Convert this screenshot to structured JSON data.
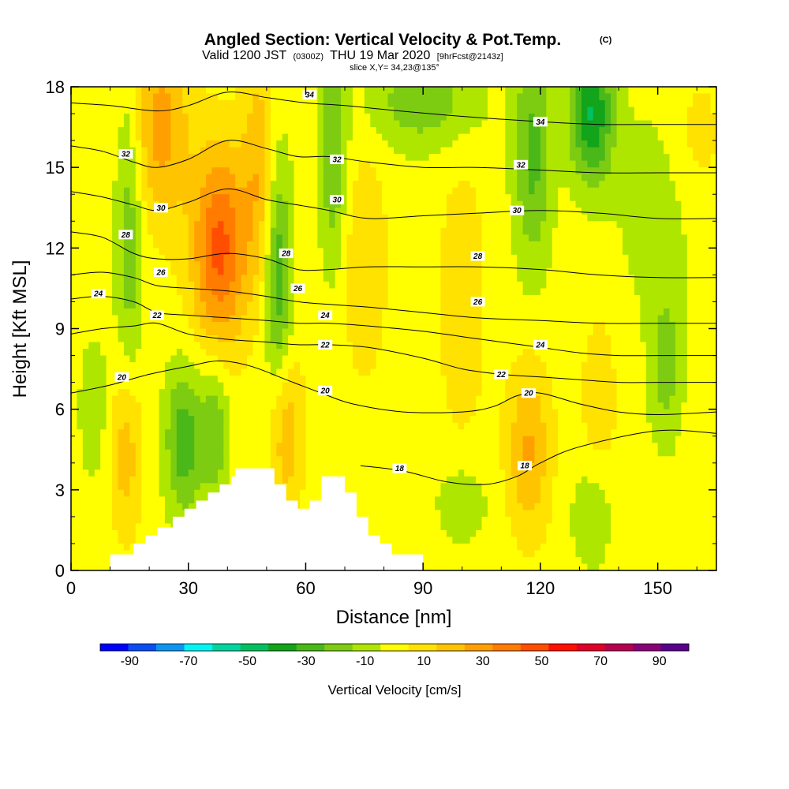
{
  "header": {
    "title": "Angled Section: Vertical Velocity & Pot.Temp.",
    "copyright": "(C)",
    "valid_prefix": "Valid 1200 JST",
    "valid_zulu": "(0300Z)",
    "valid_date": "THU 19 Mar 2020",
    "forecast": "[9hrFcst@2143z]",
    "slice": "slice X,Y= 34,23@135°"
  },
  "chart_data": {
    "type": "heatmap",
    "xlabel": "Distance [nm]",
    "ylabel": "Height [Kft MSL]",
    "xlim": [
      0,
      165
    ],
    "ylim": [
      0,
      18
    ],
    "x_ticks": [
      "0",
      "30",
      "60",
      "90",
      "120",
      "150"
    ],
    "y_ticks": [
      "0",
      "3",
      "6",
      "9",
      "12",
      "15",
      "18"
    ],
    "colorbar": {
      "label": "Vertical Velocity [cm/s]",
      "tick_labels": [
        "-90",
        "-70",
        "-50",
        "-30",
        "-10",
        "10",
        "30",
        "50",
        "70",
        "90"
      ],
      "bins": [
        -100,
        -90,
        -80,
        -70,
        -60,
        -50,
        -40,
        -30,
        -20,
        -10,
        0,
        10,
        20,
        30,
        40,
        50,
        60,
        70,
        80,
        90,
        100
      ],
      "colors": [
        "#0000ff",
        "#0a4ef2",
        "#0a96f0",
        "#00f5f5",
        "#00d5a0",
        "#00c060",
        "#12a41a",
        "#4ab818",
        "#7dcc12",
        "#aee600",
        "#ffff00",
        "#ffe200",
        "#ffc400",
        "#ffa000",
        "#ff7c00",
        "#ff4e00",
        "#ff1000",
        "#e0002a",
        "#b80050",
        "#8a0078",
        "#5a008c"
      ]
    },
    "terrain": [
      [
        10,
        0.6
      ],
      [
        16,
        0.6
      ],
      [
        16,
        1.0
      ],
      [
        19,
        1.0
      ],
      [
        19,
        1.3
      ],
      [
        22,
        1.3
      ],
      [
        22,
        1.6
      ],
      [
        26,
        1.6
      ],
      [
        26,
        2.0
      ],
      [
        29,
        2.0
      ],
      [
        29,
        2.3
      ],
      [
        32,
        2.3
      ],
      [
        32,
        2.6
      ],
      [
        35,
        2.6
      ],
      [
        35,
        2.9
      ],
      [
        38,
        2.9
      ],
      [
        38,
        3.2
      ],
      [
        41,
        3.2
      ],
      [
        41,
        3.5
      ],
      [
        42,
        3.5
      ],
      [
        42,
        3.8
      ],
      [
        52,
        3.8
      ],
      [
        52,
        3.2
      ],
      [
        55,
        3.2
      ],
      [
        55,
        2.6
      ],
      [
        58,
        2.6
      ],
      [
        58,
        2.3
      ],
      [
        61,
        2.3
      ],
      [
        61,
        2.6
      ],
      [
        64,
        2.6
      ],
      [
        64,
        3.5
      ],
      [
        70,
        3.5
      ],
      [
        70,
        2.9
      ],
      [
        73,
        2.9
      ],
      [
        73,
        2.0
      ],
      [
        76,
        2.0
      ],
      [
        76,
        1.3
      ],
      [
        79,
        1.3
      ],
      [
        79,
        1.0
      ],
      [
        82,
        1.0
      ],
      [
        82,
        0.6
      ],
      [
        90,
        0.6
      ],
      [
        90,
        0
      ]
    ],
    "wfield_blobs": [
      {
        "x": 23,
        "y": 16.5,
        "w": 30,
        "sx": 5,
        "sy": 2.5
      },
      {
        "x": 38,
        "y": 12.0,
        "w": 48,
        "sx": 5,
        "sy": 2.6
      },
      {
        "x": 48,
        "y": 15.0,
        "w": 22,
        "sx": 3,
        "sy": 3
      },
      {
        "x": 53,
        "y": 11.0,
        "w": -32,
        "sx": 2.5,
        "sy": 3.2
      },
      {
        "x": 67,
        "y": 15.5,
        "w": -25,
        "sx": 2.5,
        "sy": 3
      },
      {
        "x": 15,
        "y": 12.5,
        "w": -22,
        "sx": 2.5,
        "sy": 4
      },
      {
        "x": 29,
        "y": 4.8,
        "w": -32,
        "sx": 3.5,
        "sy": 2
      },
      {
        "x": 37,
        "y": 5.2,
        "w": -22,
        "sx": 2.5,
        "sy": 2
      },
      {
        "x": 14,
        "y": 4.5,
        "w": 22,
        "sx": 3,
        "sy": 2.2
      },
      {
        "x": 55,
        "y": 5.2,
        "w": 24,
        "sx": 3,
        "sy": 2.2
      },
      {
        "x": 75,
        "y": 11.5,
        "w": 14,
        "sx": 4,
        "sy": 3
      },
      {
        "x": 100,
        "y": 10,
        "w": 14,
        "sx": 4,
        "sy": 3.5
      },
      {
        "x": 117,
        "y": 4.5,
        "w": 26,
        "sx": 4,
        "sy": 2.2
      },
      {
        "x": 135,
        "y": 6.5,
        "w": 14,
        "sx": 3,
        "sy": 2
      },
      {
        "x": 90,
        "y": 17.5,
        "w": -22,
        "sx": 10,
        "sy": 1.3
      },
      {
        "x": 118,
        "y": 15.5,
        "w": -28,
        "sx": 3.5,
        "sy": 3
      },
      {
        "x": 133,
        "y": 17.0,
        "w": -45,
        "sx": 4,
        "sy": 1.8
      },
      {
        "x": 152,
        "y": 7.5,
        "w": -20,
        "sx": 3,
        "sy": 2
      },
      {
        "x": 100,
        "y": 2.5,
        "w": -12,
        "sx": 5,
        "sy": 1.2
      },
      {
        "x": 133,
        "y": 2.0,
        "w": -12,
        "sx": 4,
        "sy": 1.5
      },
      {
        "x": 150,
        "y": 13.5,
        "w": -10,
        "sx": 8,
        "sy": 3
      },
      {
        "x": 160,
        "y": 16.0,
        "w": 10,
        "sx": 5,
        "sy": 2
      },
      {
        "x": 6,
        "y": 6.0,
        "w": -12,
        "sx": 3,
        "sy": 2
      }
    ],
    "theta_contours": [
      {
        "level": "18",
        "points": [
          [
            74,
            3.9
          ],
          [
            85,
            3.7
          ],
          [
            96,
            3.3
          ],
          [
            106,
            3.2
          ],
          [
            114,
            3.5
          ],
          [
            120,
            4.0
          ],
          [
            130,
            4.6
          ],
          [
            150,
            5.2
          ],
          [
            165,
            5.1
          ]
        ]
      },
      {
        "level": "20",
        "points": [
          [
            0,
            6.6
          ],
          [
            10,
            6.9
          ],
          [
            20,
            7.3
          ],
          [
            30,
            7.6
          ],
          [
            38,
            7.8
          ],
          [
            46,
            7.6
          ],
          [
            55,
            7.1
          ],
          [
            64,
            6.6
          ],
          [
            72,
            6.2
          ],
          [
            85,
            5.9
          ],
          [
            100,
            5.9
          ],
          [
            108,
            6.1
          ],
          [
            114,
            6.5
          ],
          [
            120,
            6.6
          ],
          [
            130,
            6.2
          ],
          [
            140,
            5.9
          ],
          [
            150,
            5.8
          ],
          [
            165,
            5.9
          ]
        ]
      },
      {
        "level": "22",
        "points": [
          [
            0,
            8.8
          ],
          [
            8,
            9.0
          ],
          [
            16,
            9.1
          ],
          [
            22,
            9.2
          ],
          [
            30,
            8.8
          ],
          [
            40,
            8.6
          ],
          [
            50,
            8.5
          ],
          [
            58,
            8.4
          ],
          [
            66,
            8.4
          ],
          [
            76,
            8.3
          ],
          [
            90,
            7.9
          ],
          [
            100,
            7.5
          ],
          [
            110,
            7.3
          ],
          [
            120,
            7.2
          ],
          [
            130,
            7.1
          ],
          [
            140,
            7.0
          ],
          [
            150,
            7.0
          ],
          [
            165,
            7.0
          ]
        ]
      },
      {
        "level": "24",
        "points": [
          [
            0,
            10.1
          ],
          [
            8,
            10.2
          ],
          [
            16,
            10.0
          ],
          [
            22,
            9.6
          ],
          [
            30,
            9.5
          ],
          [
            40,
            9.4
          ],
          [
            50,
            9.3
          ],
          [
            58,
            9.2
          ],
          [
            66,
            9.2
          ],
          [
            76,
            9.1
          ],
          [
            90,
            8.9
          ],
          [
            100,
            8.7
          ],
          [
            110,
            8.5
          ],
          [
            120,
            8.3
          ],
          [
            130,
            8.1
          ],
          [
            140,
            8.0
          ],
          [
            150,
            8.0
          ],
          [
            165,
            8.0
          ]
        ]
      },
      {
        "level": "26",
        "points": [
          [
            0,
            11.0
          ],
          [
            8,
            11.1
          ],
          [
            16,
            10.9
          ],
          [
            22,
            10.6
          ],
          [
            30,
            10.5
          ],
          [
            40,
            10.4
          ],
          [
            50,
            10.2
          ],
          [
            58,
            10.0
          ],
          [
            66,
            9.9
          ],
          [
            76,
            9.8
          ],
          [
            90,
            9.6
          ],
          [
            104,
            9.4
          ],
          [
            120,
            9.3
          ],
          [
            135,
            9.2
          ],
          [
            150,
            9.2
          ],
          [
            165,
            9.2
          ]
        ]
      },
      {
        "level": "28",
        "points": [
          [
            0,
            12.6
          ],
          [
            8,
            12.4
          ],
          [
            16,
            11.8
          ],
          [
            22,
            11.6
          ],
          [
            30,
            11.6
          ],
          [
            40,
            11.8
          ],
          [
            50,
            11.6
          ],
          [
            58,
            11.2
          ],
          [
            66,
            11.2
          ],
          [
            76,
            11.3
          ],
          [
            90,
            11.3
          ],
          [
            104,
            11.3
          ],
          [
            120,
            11.2
          ],
          [
            135,
            11.0
          ],
          [
            150,
            10.9
          ],
          [
            165,
            10.9
          ]
        ]
      },
      {
        "level": "30",
        "points": [
          [
            0,
            14.1
          ],
          [
            8,
            13.9
          ],
          [
            16,
            13.6
          ],
          [
            22,
            13.4
          ],
          [
            30,
            13.7
          ],
          [
            40,
            14.2
          ],
          [
            50,
            13.8
          ],
          [
            58,
            13.6
          ],
          [
            66,
            13.4
          ],
          [
            76,
            13.1
          ],
          [
            90,
            13.2
          ],
          [
            104,
            13.3
          ],
          [
            120,
            13.4
          ],
          [
            135,
            13.3
          ],
          [
            150,
            13.1
          ],
          [
            165,
            13.1
          ]
        ]
      },
      {
        "level": "32",
        "points": [
          [
            0,
            15.8
          ],
          [
            8,
            15.6
          ],
          [
            16,
            15.2
          ],
          [
            22,
            15.0
          ],
          [
            30,
            15.3
          ],
          [
            40,
            16.0
          ],
          [
            50,
            15.7
          ],
          [
            58,
            15.4
          ],
          [
            66,
            15.4
          ],
          [
            76,
            15.2
          ],
          [
            90,
            15.0
          ],
          [
            104,
            15.0
          ],
          [
            120,
            14.9
          ],
          [
            135,
            14.8
          ],
          [
            150,
            14.8
          ],
          [
            165,
            14.8
          ]
        ]
      },
      {
        "level": "34",
        "points": [
          [
            0,
            17.4
          ],
          [
            10,
            17.3
          ],
          [
            22,
            17.1
          ],
          [
            30,
            17.3
          ],
          [
            40,
            17.8
          ],
          [
            50,
            17.6
          ],
          [
            60,
            17.4
          ],
          [
            70,
            17.3
          ],
          [
            84,
            17.1
          ],
          [
            100,
            16.9
          ],
          [
            120,
            16.7
          ],
          [
            135,
            16.6
          ],
          [
            150,
            16.6
          ],
          [
            165,
            16.6
          ]
        ]
      }
    ],
    "contour_labels": [
      {
        "text": "34",
        "x": 61,
        "y": 17.7
      },
      {
        "text": "34",
        "x": 120,
        "y": 16.7
      },
      {
        "text": "32",
        "x": 14,
        "y": 15.5
      },
      {
        "text": "32",
        "x": 68,
        "y": 15.3
      },
      {
        "text": "32",
        "x": 115,
        "y": 15.1
      },
      {
        "text": "30",
        "x": 23,
        "y": 13.5
      },
      {
        "text": "30",
        "x": 68,
        "y": 13.8
      },
      {
        "text": "30",
        "x": 114,
        "y": 13.4
      },
      {
        "text": "28",
        "x": 14,
        "y": 12.5
      },
      {
        "text": "28",
        "x": 55,
        "y": 11.8
      },
      {
        "text": "28",
        "x": 104,
        "y": 11.7
      },
      {
        "text": "26",
        "x": 23,
        "y": 11.1
      },
      {
        "text": "26",
        "x": 58,
        "y": 10.5
      },
      {
        "text": "26",
        "x": 104,
        "y": 10.0
      },
      {
        "text": "24",
        "x": 7,
        "y": 10.3
      },
      {
        "text": "24",
        "x": 65,
        "y": 9.5
      },
      {
        "text": "24",
        "x": 120,
        "y": 8.4
      },
      {
        "text": "22",
        "x": 22,
        "y": 9.5
      },
      {
        "text": "22",
        "x": 65,
        "y": 8.4
      },
      {
        "text": "22",
        "x": 110,
        "y": 7.3
      },
      {
        "text": "20",
        "x": 13,
        "y": 7.2
      },
      {
        "text": "20",
        "x": 65,
        "y": 6.7
      },
      {
        "text": "20",
        "x": 117,
        "y": 6.6
      },
      {
        "text": "18",
        "x": 84,
        "y": 3.8
      },
      {
        "text": "18",
        "x": 116,
        "y": 3.9
      }
    ]
  }
}
